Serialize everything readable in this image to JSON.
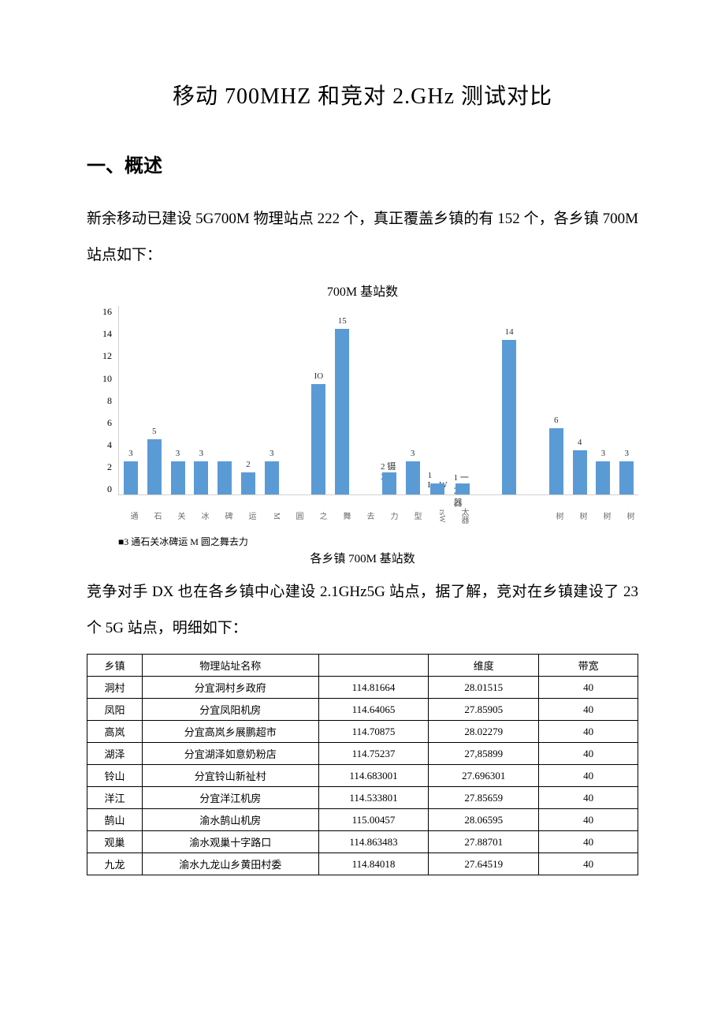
{
  "title": "移动 700MHZ 和竞对 2.GHz 测试对比",
  "section1_heading": "一、概述",
  "para1": "新余移动已建设 5G700M 物理站点 222 个，真正覆盖乡镇的有 152 个，各乡镇 700M 站点如下：",
  "chart": {
    "type": "bar",
    "title": "700M 基站数",
    "caption": "各乡镇 700M 基站数",
    "legend": "■3 通石关冰碑运 M 圆之舞去力",
    "bar_color": "#5b9bd5",
    "axis_color": "#d0d0d0",
    "value_fontsize": 11,
    "label_fontsize": 10,
    "title_fontsize": 16,
    "background_color": "#ffffff",
    "ylim": [
      0,
      16
    ],
    "ytick_step": 2,
    "yticks": [
      "16",
      "14",
      "12",
      "10",
      "8",
      "6",
      "4",
      "2",
      "0"
    ],
    "bars": [
      {
        "label": "通",
        "value": 3,
        "show": "3"
      },
      {
        "label": "石",
        "value": 5,
        "show": "5"
      },
      {
        "label": "关",
        "value": 3,
        "show": "3"
      },
      {
        "label": "冰",
        "value": 3,
        "show": "3"
      },
      {
        "label": "碑",
        "value": 3,
        "show": ""
      },
      {
        "label": "运",
        "value": 2,
        "show": "2"
      },
      {
        "label": "M",
        "value": 3,
        "show": "3"
      },
      {
        "label": "圆",
        "value": 0,
        "show": ""
      },
      {
        "label": "之",
        "value": 10,
        "show": "IO"
      },
      {
        "label": "舞",
        "value": 15,
        "show": "15"
      },
      {
        "label": "去",
        "value": 0,
        "show": ""
      },
      {
        "label": "力",
        "value": 2,
        "show": "2 镊X"
      },
      {
        "label": "型",
        "value": 3,
        "show": "3"
      },
      {
        "label": "rsW",
        "value": 1,
        "show": "1 LrsW"
      },
      {
        "label": "太器",
        "value": 1,
        "show": "1 一太器"
      },
      {
        "label": "",
        "value": 0,
        "show": ""
      },
      {
        "label": "",
        "value": 14,
        "show": "14"
      },
      {
        "label": "",
        "value": 0,
        "show": ""
      },
      {
        "label": "树",
        "value": 6,
        "show": "6"
      },
      {
        "label": "树",
        "value": 4,
        "show": "4"
      },
      {
        "label": "树",
        "value": 3,
        "show": "3"
      },
      {
        "label": "树",
        "value": 3,
        "show": "3"
      }
    ]
  },
  "para2": "竞争对手 DX 也在各乡镇中心建设 2.1GHz5G 站点，据了解，竞对在乡镇建设了 23 个 5G 站点，明细如下：",
  "table": {
    "columns": [
      "乡镇",
      "物理站址名称",
      "",
      "维度",
      "带宽"
    ],
    "rows": [
      [
        "洞村",
        "分宜洞村乡政府",
        "114.81664",
        "28.01515",
        "40"
      ],
      [
        "凤阳",
        "分宜凤阳机房",
        "114.64065",
        "27.85905",
        "40"
      ],
      [
        "高岚",
        "分宜高岚乡展鹏超市",
        "114.70875",
        "28.02279",
        "40"
      ],
      [
        "湖泽",
        "分宜湖泽如意奶粉店",
        "114.75237",
        "27,85899",
        "40"
      ],
      [
        "铃山",
        "分宜铃山新祉村",
        "114.683001",
        "27.696301",
        "40"
      ],
      [
        "洋江",
        "分宜洋江机房",
        "114.533801",
        "27.85659",
        "40"
      ],
      [
        "鹄山",
        "渝水鹄山机房",
        "115.00457",
        "28.06595",
        "40"
      ],
      [
        "观巢",
        "渝水观巢十字路口",
        "114.863483",
        "27.88701",
        "40"
      ],
      [
        "九龙",
        "渝水九龙山乡黄田村委",
        "114.84018",
        "27.64519",
        "40"
      ]
    ]
  },
  "colors": {
    "text": "#000000",
    "bg": "#ffffff",
    "bar": "#5b9bd5",
    "grid": "#d0d0d0",
    "xlabel": "#6b6b6b"
  }
}
